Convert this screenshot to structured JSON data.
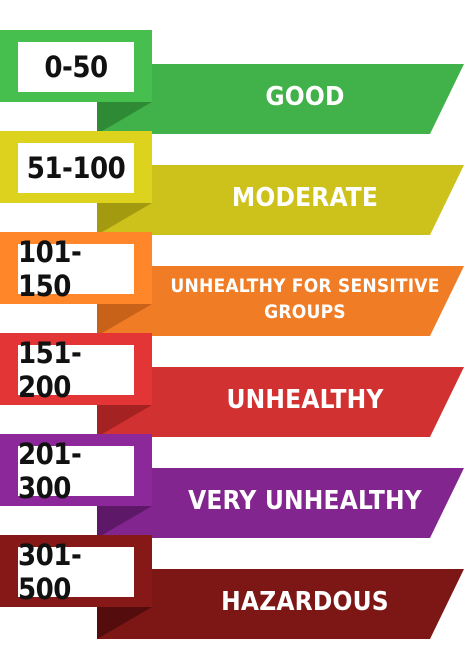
{
  "levels": [
    {
      "range": "0-50",
      "category": "GOOD",
      "color": "#41b149",
      "shade": "#2f8a36"
    },
    {
      "range": "51-100",
      "category": "MODERATE",
      "color": "#cdc21c",
      "shade": "#a39a10"
    },
    {
      "range": "101-150",
      "category": "UNHEALTHY FOR SENSITIVE GROUPS",
      "color": "#f07c26",
      "shade": "#c76218"
    },
    {
      "range": "151-200",
      "category": "UNHEALTHY",
      "color": "#d23131",
      "shade": "#a52222"
    },
    {
      "range": "201-300",
      "category": "VERY UNHEALTHY",
      "color": "#82258f",
      "shade": "#5e1868"
    },
    {
      "range": "301-500",
      "category": "HAZARDOUS",
      "color": "#7c1716",
      "shade": "#540c0c"
    }
  ]
}
